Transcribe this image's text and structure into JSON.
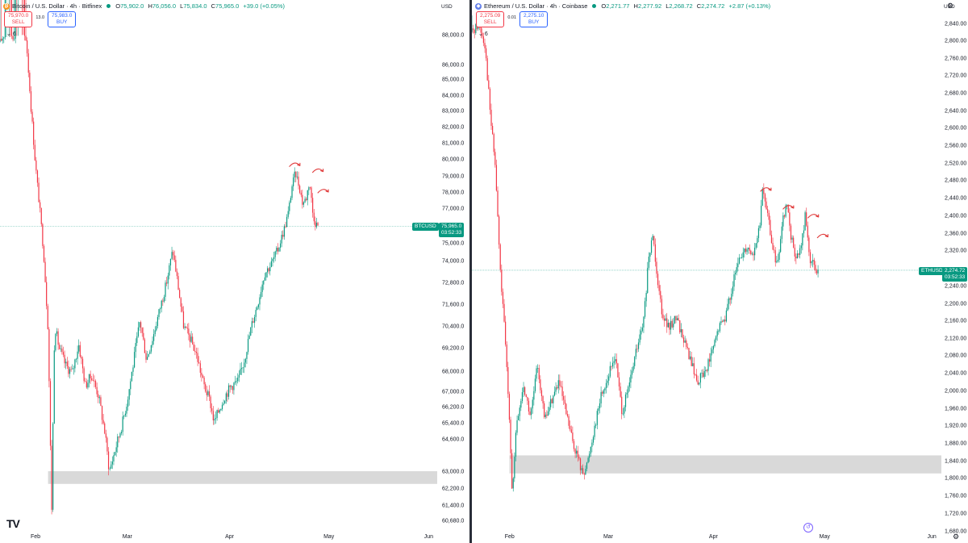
{
  "colors": {
    "up": "#089981",
    "down": "#f23645",
    "zone": "#d9d9d9",
    "price_line": "#089981",
    "annotation": "#e03a3a"
  },
  "brand": {
    "logo": "TV"
  },
  "charts": [
    {
      "id": "btc",
      "symbol_title": "Bitcoin / U.S. Dollar · 4h · Bitfinex",
      "coin_icon": "₿",
      "coin_color": "#f7931a",
      "ohlc": {
        "o": "75,902.0",
        "h": "76,056.0",
        "l": "75,834.0",
        "c": "75,965.0",
        "chg": "+39.0 (+0.05%)"
      },
      "sell": {
        "price": "75,970.0",
        "label": "SELL"
      },
      "buy": {
        "price": "75,983.0",
        "label": "BUY"
      },
      "spread": "13.0",
      "indicators_count": "6",
      "currency": "USD",
      "price_label": {
        "symbol": "BTCUSD",
        "price": "75,965.0",
        "countdown": "03:52:33"
      },
      "y_ticks": [
        {
          "v": 88000,
          "label": "88,000.0"
        },
        {
          "v": 86000,
          "label": "86,000.0"
        },
        {
          "v": 85000,
          "label": "85,000.0"
        },
        {
          "v": 84000,
          "label": "84,000.0"
        },
        {
          "v": 83000,
          "label": "83,000.0"
        },
        {
          "v": 82000,
          "label": "82,000.0"
        },
        {
          "v": 81000,
          "label": "81,000.0"
        },
        {
          "v": 80000,
          "label": "80,000.0"
        },
        {
          "v": 79000,
          "label": "79,000.0"
        },
        {
          "v": 78000,
          "label": "78,000.0"
        },
        {
          "v": 77000,
          "label": "77,000.0"
        },
        {
          "v": 75000,
          "label": "75,000.0"
        },
        {
          "v": 74000,
          "label": "74,000.0"
        },
        {
          "v": 72800,
          "label": "72,800.0"
        },
        {
          "v": 71600,
          "label": "71,600.0"
        },
        {
          "v": 70400,
          "label": "70,400.0"
        },
        {
          "v": 69200,
          "label": "69,200.0"
        },
        {
          "v": 68000,
          "label": "68,000.0"
        },
        {
          "v": 67000,
          "label": "67,000.0"
        },
        {
          "v": 66200,
          "label": "66,200.0"
        },
        {
          "v": 65400,
          "label": "65,400.0"
        },
        {
          "v": 64600,
          "label": "64,600.0"
        },
        {
          "v": 63000,
          "label": "63,000.0"
        },
        {
          "v": 62200,
          "label": "62,200.0"
        },
        {
          "v": 61400,
          "label": "61,400.0"
        },
        {
          "v": 60680,
          "label": "60,680.0"
        }
      ],
      "x_labels": [
        {
          "t": 0.07,
          "label": "Feb"
        },
        {
          "t": 0.28,
          "label": "Mar"
        },
        {
          "t": 0.515,
          "label": "Apr"
        },
        {
          "t": 0.74,
          "label": "May"
        },
        {
          "t": 0.97,
          "label": "Jun"
        }
      ],
      "series_path": [
        [
          0.0,
          87500
        ],
        [
          0.015,
          88300
        ],
        [
          0.03,
          87900
        ],
        [
          0.045,
          88400
        ],
        [
          0.06,
          87700
        ],
        [
          0.07,
          83500
        ],
        [
          0.08,
          80000
        ],
        [
          0.09,
          77200
        ],
        [
          0.1,
          74400
        ],
        [
          0.11,
          70200
        ],
        [
          0.118,
          61000
        ],
        [
          0.125,
          70500
        ],
        [
          0.135,
          69200
        ],
        [
          0.15,
          68300
        ],
        [
          0.165,
          67900
        ],
        [
          0.18,
          69400
        ],
        [
          0.195,
          67300
        ],
        [
          0.21,
          67800
        ],
        [
          0.225,
          66800
        ],
        [
          0.24,
          64900
        ],
        [
          0.25,
          63000
        ],
        [
          0.265,
          64200
        ],
        [
          0.28,
          65400
        ],
        [
          0.29,
          66400
        ],
        [
          0.305,
          68400
        ],
        [
          0.32,
          70700
        ],
        [
          0.335,
          68600
        ],
        [
          0.35,
          69800
        ],
        [
          0.365,
          71300
        ],
        [
          0.38,
          72700
        ],
        [
          0.395,
          74600
        ],
        [
          0.405,
          73000
        ],
        [
          0.42,
          70400
        ],
        [
          0.435,
          69700
        ],
        [
          0.45,
          68800
        ],
        [
          0.465,
          67400
        ],
        [
          0.48,
          66500
        ],
        [
          0.49,
          65400
        ],
        [
          0.5,
          66000
        ],
        [
          0.515,
          66800
        ],
        [
          0.53,
          67300
        ],
        [
          0.545,
          67500
        ],
        [
          0.56,
          68700
        ],
        [
          0.575,
          70400
        ],
        [
          0.59,
          71700
        ],
        [
          0.605,
          73300
        ],
        [
          0.62,
          73800
        ],
        [
          0.635,
          74600
        ],
        [
          0.65,
          75800
        ],
        [
          0.66,
          76800
        ],
        [
          0.668,
          78400
        ],
        [
          0.676,
          79200
        ],
        [
          0.685,
          78300
        ],
        [
          0.692,
          77300
        ],
        [
          0.7,
          77600
        ],
        [
          0.708,
          78700
        ],
        [
          0.715,
          76800
        ],
        [
          0.722,
          76100
        ],
        [
          0.73,
          75965
        ]
      ],
      "zone": {
        "high": 63000,
        "low": 62400,
        "t_start": 0.11,
        "t_end": 1.0
      },
      "last_price": 75965,
      "annotations": [
        [
          0.675,
          79700
        ],
        [
          0.728,
          79350
        ],
        [
          0.74,
          78100
        ]
      ]
    },
    {
      "id": "eth",
      "symbol_title": "Ethereum / U.S. Dollar · 4h · Coinbase",
      "coin_icon": "◆",
      "coin_color": "#627eea",
      "ohlc": {
        "o": "2,271.77",
        "h": "2,277.92",
        "l": "2,268.72",
        "c": "2,274.72",
        "chg": "+2.87 (+0.13%)"
      },
      "sell": {
        "price": "2,275.09",
        "label": "SELL"
      },
      "buy": {
        "price": "2,275.10",
        "label": "BUY"
      },
      "spread": "0.01",
      "indicators_count": "6",
      "currency": "USD",
      "price_label": {
        "symbol": "ETHUSD",
        "price": "2,274.72",
        "countdown": "03:52:33"
      },
      "y_ticks": [
        {
          "v": 2840,
          "label": "2,840.00"
        },
        {
          "v": 2800,
          "label": "2,800.00"
        },
        {
          "v": 2760,
          "label": "2,760.00"
        },
        {
          "v": 2720,
          "label": "2,720.00"
        },
        {
          "v": 2680,
          "label": "2,680.00"
        },
        {
          "v": 2640,
          "label": "2,640.00"
        },
        {
          "v": 2600,
          "label": "2,600.00"
        },
        {
          "v": 2560,
          "label": "2,560.00"
        },
        {
          "v": 2520,
          "label": "2,520.00"
        },
        {
          "v": 2480,
          "label": "2,480.00"
        },
        {
          "v": 2440,
          "label": "2,440.00"
        },
        {
          "v": 2400,
          "label": "2,400.00"
        },
        {
          "v": 2360,
          "label": "2,360.00"
        },
        {
          "v": 2320,
          "label": "2,320.00"
        },
        {
          "v": 2240,
          "label": "2,240.00"
        },
        {
          "v": 2200,
          "label": "2,200.00"
        },
        {
          "v": 2160,
          "label": "2,160.00"
        },
        {
          "v": 2120,
          "label": "2,120.00"
        },
        {
          "v": 2080,
          "label": "2,080.00"
        },
        {
          "v": 2040,
          "label": "2,040.00"
        },
        {
          "v": 2000,
          "label": "2,000.00"
        },
        {
          "v": 1960,
          "label": "1,960.00"
        },
        {
          "v": 1920,
          "label": "1,920.00"
        },
        {
          "v": 1880,
          "label": "1,880.00"
        },
        {
          "v": 1840,
          "label": "1,840.00"
        },
        {
          "v": 1800,
          "label": "1,800.00"
        },
        {
          "v": 1760,
          "label": "1,760.00"
        },
        {
          "v": 1720,
          "label": "1,720.00"
        },
        {
          "v": 1680,
          "label": "1,680.00"
        }
      ],
      "x_labels": [
        {
          "t": 0.07,
          "label": "Feb"
        },
        {
          "t": 0.28,
          "label": "Mar"
        },
        {
          "t": 0.505,
          "label": "Apr"
        },
        {
          "t": 0.74,
          "label": "May"
        },
        {
          "t": 0.97,
          "label": "Jun"
        }
      ],
      "series_path": [
        [
          0.0,
          2820
        ],
        [
          0.015,
          2840
        ],
        [
          0.028,
          2790
        ],
        [
          0.04,
          2620
        ],
        [
          0.05,
          2510
        ],
        [
          0.06,
          2280
        ],
        [
          0.07,
          2130
        ],
        [
          0.08,
          1940
        ],
        [
          0.086,
          1760
        ],
        [
          0.095,
          1920
        ],
        [
          0.11,
          2010
        ],
        [
          0.125,
          1940
        ],
        [
          0.14,
          2060
        ],
        [
          0.155,
          1930
        ],
        [
          0.17,
          1980
        ],
        [
          0.185,
          2020
        ],
        [
          0.2,
          1950
        ],
        [
          0.215,
          1880
        ],
        [
          0.225,
          1850
        ],
        [
          0.235,
          1810
        ],
        [
          0.245,
          1830
        ],
        [
          0.26,
          1910
        ],
        [
          0.275,
          1990
        ],
        [
          0.29,
          2030
        ],
        [
          0.305,
          2080
        ],
        [
          0.32,
          1950
        ],
        [
          0.335,
          2010
        ],
        [
          0.35,
          2090
        ],
        [
          0.365,
          2150
        ],
        [
          0.375,
          2280
        ],
        [
          0.385,
          2360
        ],
        [
          0.395,
          2260
        ],
        [
          0.405,
          2180
        ],
        [
          0.42,
          2140
        ],
        [
          0.435,
          2170
        ],
        [
          0.45,
          2120
        ],
        [
          0.465,
          2070
        ],
        [
          0.48,
          2020
        ],
        [
          0.495,
          2040
        ],
        [
          0.51,
          2080
        ],
        [
          0.525,
          2140
        ],
        [
          0.54,
          2170
        ],
        [
          0.555,
          2240
        ],
        [
          0.57,
          2300
        ],
        [
          0.585,
          2330
        ],
        [
          0.6,
          2310
        ],
        [
          0.612,
          2370
        ],
        [
          0.62,
          2460
        ],
        [
          0.63,
          2400
        ],
        [
          0.64,
          2330
        ],
        [
          0.65,
          2280
        ],
        [
          0.66,
          2380
        ],
        [
          0.67,
          2430
        ],
        [
          0.68,
          2350
        ],
        [
          0.69,
          2300
        ],
        [
          0.7,
          2320
        ],
        [
          0.71,
          2400
        ],
        [
          0.72,
          2300
        ],
        [
          0.73,
          2280
        ],
        [
          0.74,
          2274.72
        ]
      ],
      "zone": {
        "high": 1852,
        "low": 1810,
        "t_start": 0.08,
        "t_end": 1.0
      },
      "last_price": 2274.72,
      "annotations": [
        [
          0.627,
          2460
        ],
        [
          0.675,
          2420
        ],
        [
          0.728,
          2400
        ],
        [
          0.748,
          2355
        ]
      ]
    }
  ]
}
